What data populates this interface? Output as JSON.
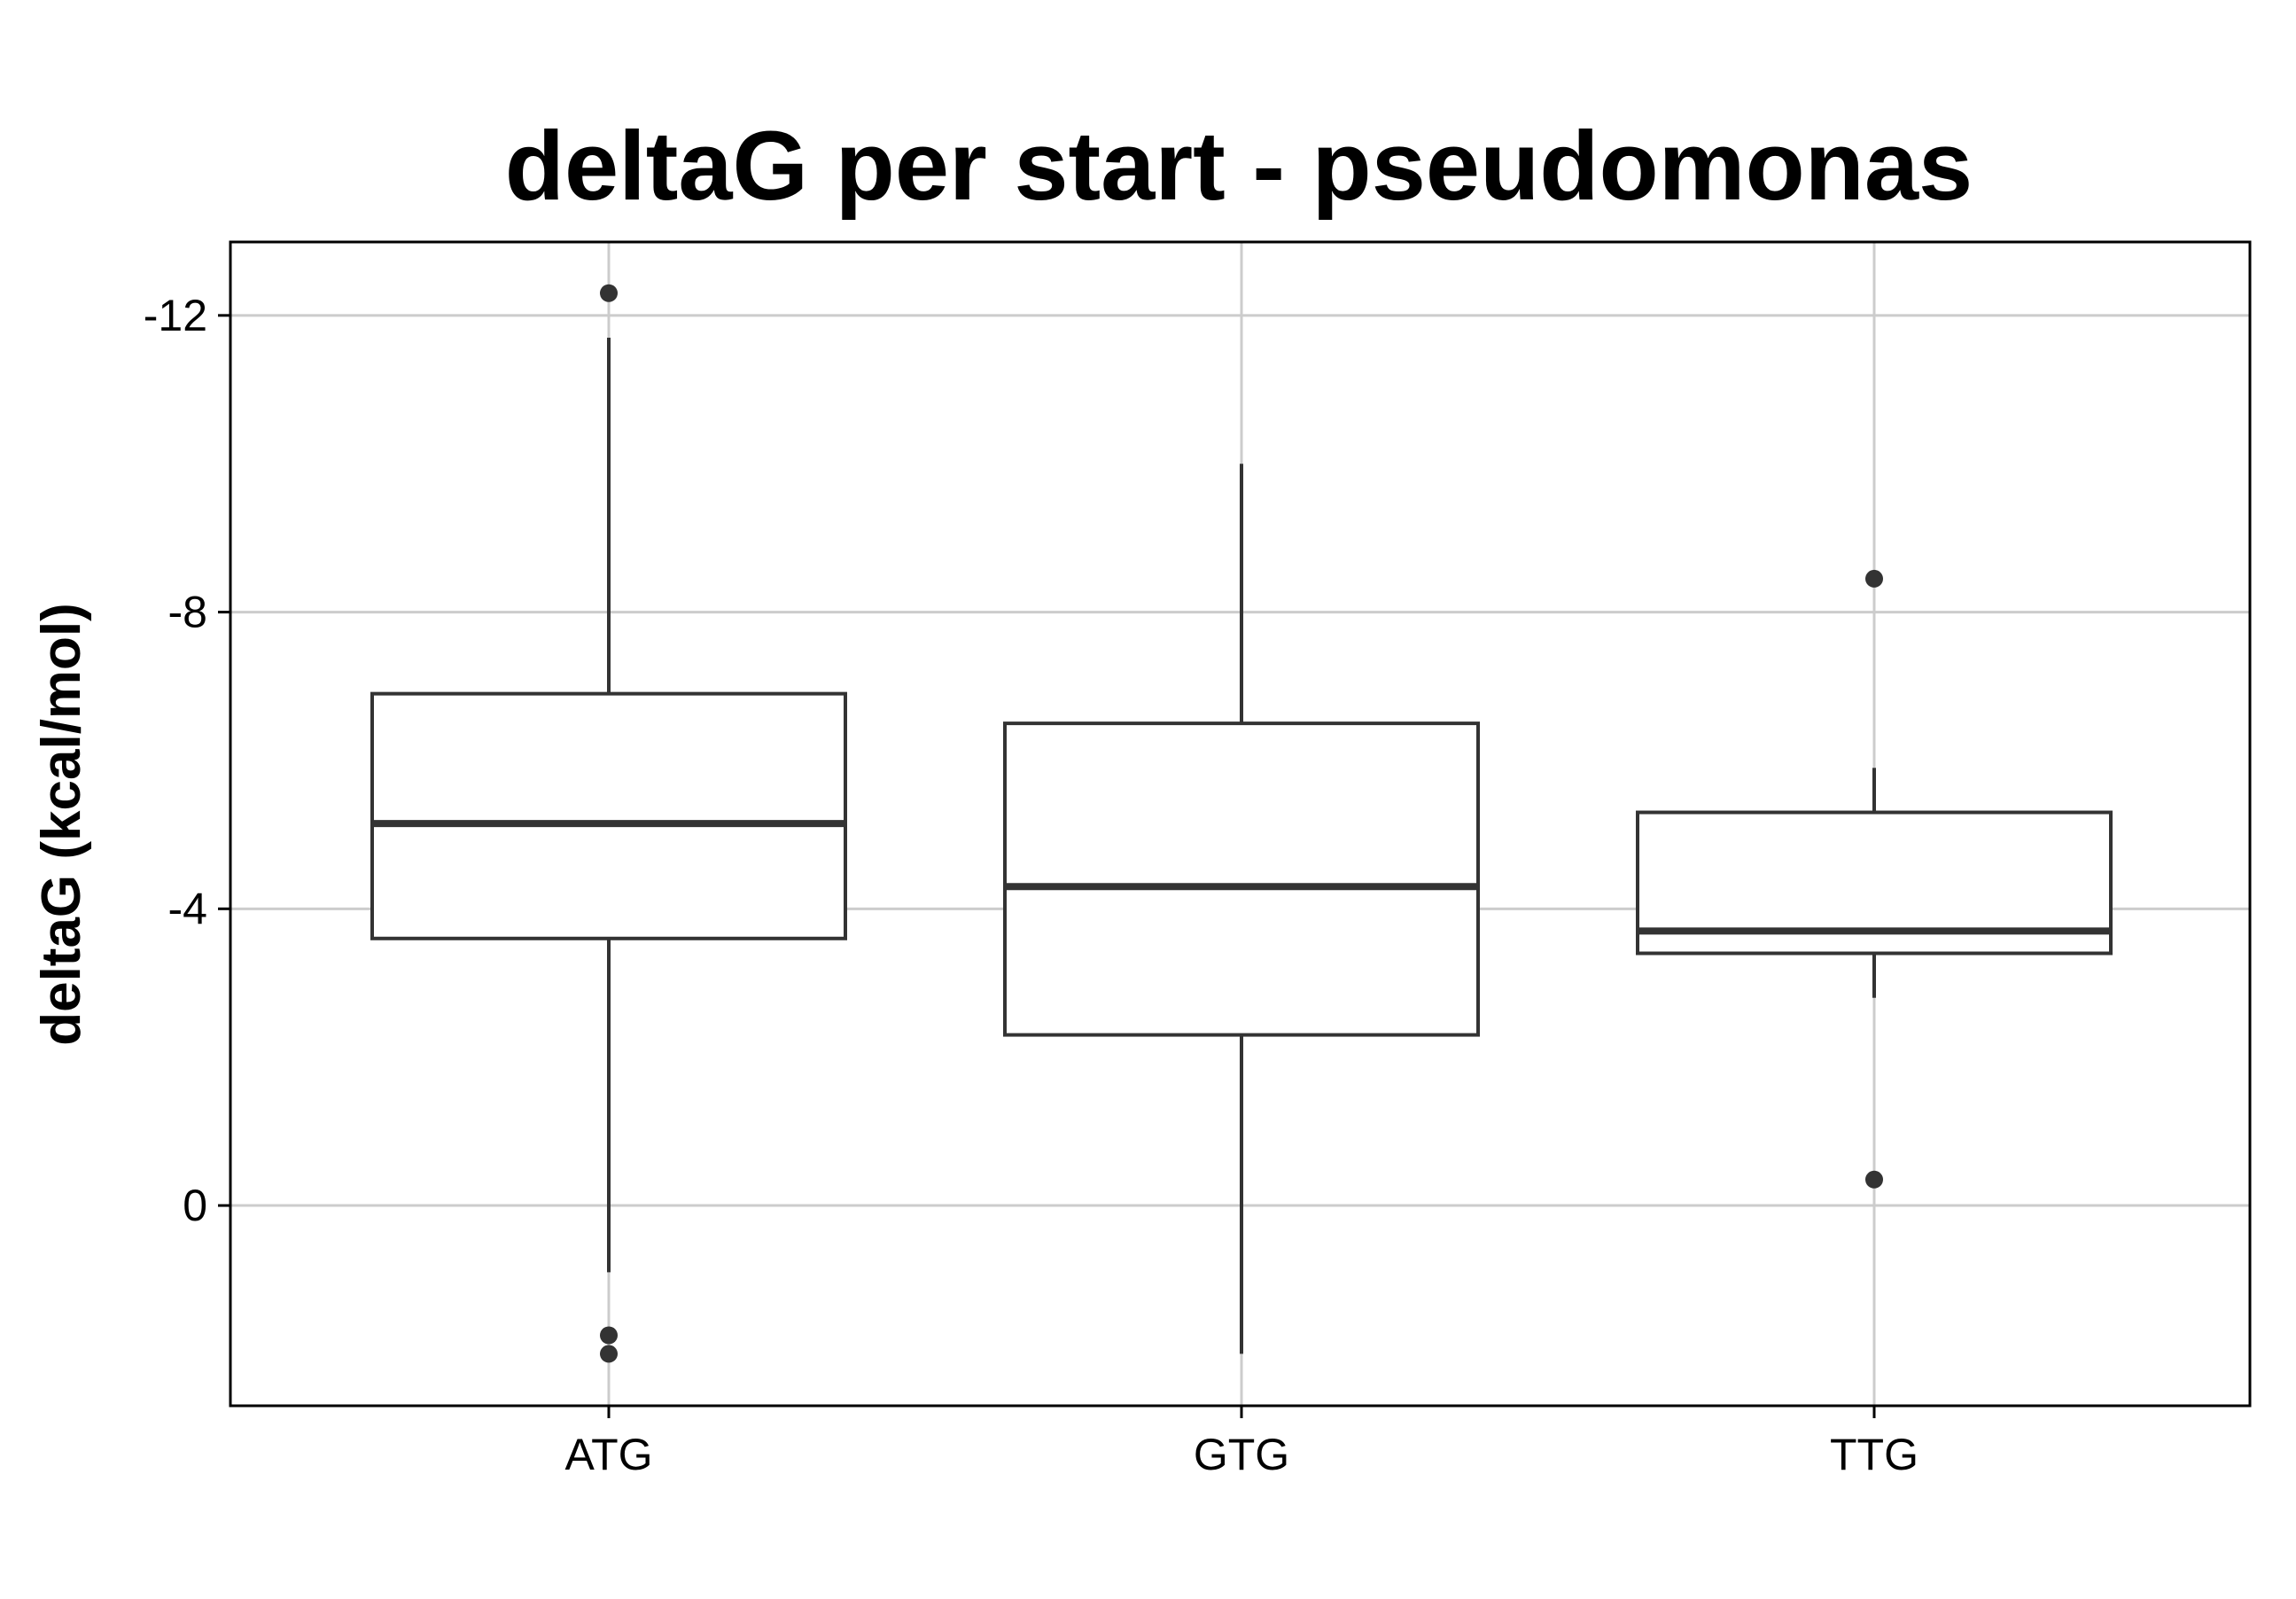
{
  "chart_data": {
    "type": "boxplot",
    "title": "deltaG per start - pseudomonas",
    "xlabel": "",
    "ylabel": "deltaG (kcal/mol)",
    "y_axis_inverted": true,
    "ylim": [
      2.7,
      -12.99
    ],
    "yticks": [
      -12,
      -8,
      -4,
      0
    ],
    "ytick_labels": [
      "-12",
      "-8",
      "-4",
      "0"
    ],
    "grid": true,
    "categories": [
      "ATG",
      "GTG",
      "TTG"
    ],
    "boxes": [
      {
        "category": "ATG",
        "whisker_low": -11.7,
        "q1": -6.9,
        "median": -5.15,
        "q3": -3.6,
        "whisker_high": 0.9,
        "outliers": [
          -12.3,
          1.75,
          2.0
        ]
      },
      {
        "category": "GTG",
        "whisker_low": -10.0,
        "q1": -6.5,
        "median": -4.3,
        "q3": -2.3,
        "whisker_high": 2.0,
        "outliers": []
      },
      {
        "category": "TTG",
        "whisker_low": -5.9,
        "q1": -5.3,
        "median": -3.7,
        "q3": -3.4,
        "whisker_high": -2.8,
        "outliers": [
          -8.45,
          -0.35
        ]
      }
    ],
    "colors": {
      "box_stroke": "#333333",
      "box_fill": "#ffffff",
      "grid": "#cccccc",
      "axis": "#000000"
    }
  }
}
